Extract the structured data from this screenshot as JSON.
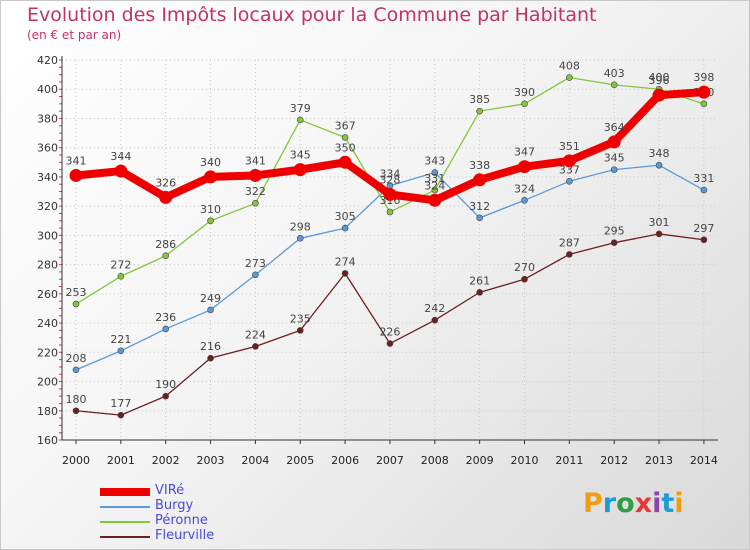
{
  "chart_data": {
    "type": "line",
    "title": "Evolution des Impôts locaux pour la Commune par Habitant",
    "subtitle": "(en € et par an)",
    "categories": [
      "2000",
      "2001",
      "2002",
      "2003",
      "2004",
      "2005",
      "2006",
      "2007",
      "2008",
      "2009",
      "2010",
      "2011",
      "2012",
      "2013",
      "2014"
    ],
    "ylim": [
      160,
      420
    ],
    "yticks": [
      160,
      180,
      200,
      220,
      240,
      260,
      280,
      300,
      320,
      340,
      360,
      380,
      400,
      420
    ],
    "grid": true,
    "series": [
      {
        "name": "Fleurville",
        "color": "#6b1f1f",
        "values": [
          180,
          177,
          190,
          216,
          224,
          235,
          274,
          226,
          242,
          261,
          270,
          287,
          295,
          301,
          297
        ]
      },
      {
        "name": "Burgy",
        "color": "#5a9ad6",
        "values": [
          208,
          221,
          236,
          249,
          273,
          298,
          305,
          334,
          343,
          312,
          324,
          337,
          345,
          348,
          331
        ]
      },
      {
        "name": "Péronne",
        "color": "#82c63c",
        "values": [
          253,
          272,
          286,
          310,
          322,
          379,
          367,
          316,
          331,
          385,
          390,
          408,
          403,
          400,
          390
        ]
      },
      {
        "name": "VIRé",
        "color": "#ee0000",
        "values": [
          341,
          344,
          326,
          340,
          341,
          345,
          350,
          328,
          324,
          338,
          347,
          351,
          364,
          396,
          398
        ]
      }
    ],
    "legend_order": [
      "VIRé",
      "Burgy",
      "Péronne",
      "Fleurville"
    ],
    "legend_position": "bottom-left"
  },
  "brand": {
    "letters": [
      "P",
      "r",
      "o",
      "x",
      "i",
      "t",
      "i"
    ],
    "colors": [
      "#f39c12",
      "#1a9cd8",
      "#2f9e44",
      "#e53935",
      "#8e44ad",
      "#1a9cd8",
      "#f39c12"
    ]
  }
}
